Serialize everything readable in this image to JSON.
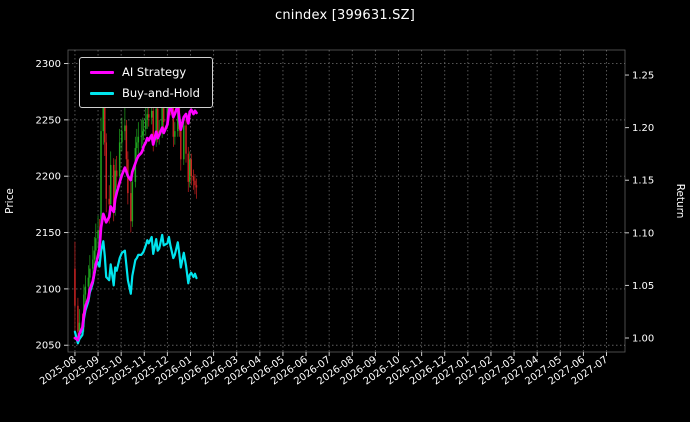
{
  "chart_data": {
    "type": "candlestick+line",
    "title": "cnindex [399631.SZ]",
    "ylabel_left": "Price",
    "ylabel_right": "Return",
    "grid": true,
    "legend_position": "upper left",
    "x_tick_labels": [
      "2025-08",
      "2025-09",
      "2025-10",
      "2025-11",
      "2025-12",
      "2026-01",
      "2026-02",
      "2026-03",
      "2026-04",
      "2026-05",
      "2026-06",
      "2026-07",
      "2026-08",
      "2026-09",
      "2026-10",
      "2026-11",
      "2026-12",
      "2027-01",
      "2027-02",
      "2027-03",
      "2027-04",
      "2027-05",
      "2027-06",
      "2027-07"
    ],
    "y_left_ticks": [
      2050,
      2100,
      2150,
      2200,
      2250,
      2300
    ],
    "y_right_ticks": [
      1.0,
      1.05,
      1.1,
      1.15,
      1.2,
      1.25
    ],
    "y_left_range": [
      2044,
      2312
    ],
    "y_right_range": [
      0.9867,
      1.2738
    ],
    "colors": {
      "background": "#000000",
      "text": "#ffffff",
      "grid": "#606060",
      "spine": "#aaaaaa",
      "up": "#1fa51f",
      "down": "#cc2222",
      "ai_strategy": "#ff00ff",
      "buy_and_hold": "#00e5ee"
    },
    "candles": [
      [
        "2025-08-01",
        2118,
        2142,
        2060,
        2085
      ],
      [
        "2025-08-05",
        2085,
        2092,
        2052,
        2062
      ],
      [
        "2025-08-07",
        2062,
        2082,
        2056,
        2070
      ],
      [
        "2025-08-11",
        2070,
        2078,
        2058,
        2066
      ],
      [
        "2025-08-13",
        2066,
        2104,
        2062,
        2095
      ],
      [
        "2025-08-15",
        2095,
        2112,
        2088,
        2102
      ],
      [
        "2025-08-19",
        2102,
        2121,
        2094,
        2110
      ],
      [
        "2025-08-21",
        2110,
        2130,
        2102,
        2118
      ],
      [
        "2025-08-25",
        2118,
        2138,
        2110,
        2126
      ],
      [
        "2025-08-27",
        2126,
        2146,
        2118,
        2134
      ],
      [
        "2025-08-29",
        2134,
        2158,
        2126,
        2145
      ],
      [
        "2025-09-01",
        2145,
        2165,
        2136,
        2152
      ],
      [
        "2025-09-03",
        2152,
        2162,
        2140,
        2150
      ],
      [
        "2025-09-05",
        2150,
        2252,
        2145,
        2240
      ],
      [
        "2025-09-08",
        2240,
        2295,
        2228,
        2285
      ],
      [
        "2025-09-10",
        2285,
        2292,
        2218,
        2230
      ],
      [
        "2025-09-12",
        2230,
        2238,
        2168,
        2180
      ],
      [
        "2025-09-16",
        2180,
        2192,
        2158,
        2175
      ],
      [
        "2025-09-18",
        2175,
        2222,
        2170,
        2210
      ],
      [
        "2025-09-22",
        2210,
        2216,
        2160,
        2170
      ],
      [
        "2025-09-24",
        2170,
        2215,
        2165,
        2205
      ],
      [
        "2025-09-26",
        2205,
        2218,
        2190,
        2200
      ],
      [
        "2025-09-30",
        2200,
        2242,
        2195,
        2230
      ],
      [
        "2025-10-02",
        2230,
        2252,
        2222,
        2240
      ],
      [
        "2025-10-06",
        2240,
        2262,
        2232,
        2245
      ],
      [
        "2025-10-08",
        2245,
        2250,
        2205,
        2215
      ],
      [
        "2025-10-10",
        2215,
        2222,
        2175,
        2185
      ],
      [
        "2025-10-14",
        2185,
        2195,
        2150,
        2160
      ],
      [
        "2025-10-16",
        2160,
        2205,
        2155,
        2195
      ],
      [
        "2025-10-20",
        2195,
        2235,
        2190,
        2225
      ],
      [
        "2025-10-22",
        2225,
        2242,
        2215,
        2230
      ],
      [
        "2025-10-24",
        2230,
        2248,
        2220,
        2235
      ],
      [
        "2025-10-28",
        2235,
        2250,
        2225,
        2236
      ],
      [
        "2025-10-30",
        2236,
        2252,
        2228,
        2240
      ],
      [
        "2025-10-31",
        2240,
        2250,
        2232,
        2242
      ],
      [
        "2025-11-03",
        2242,
        2262,
        2236,
        2250
      ],
      [
        "2025-11-05",
        2250,
        2268,
        2242,
        2255
      ],
      [
        "2025-11-07",
        2255,
        2264,
        2244,
        2252
      ],
      [
        "2025-11-11",
        2252,
        2270,
        2246,
        2258
      ],
      [
        "2025-11-13",
        2258,
        2262,
        2222,
        2232
      ],
      [
        "2025-11-17",
        2232,
        2268,
        2226,
        2260
      ],
      [
        "2025-11-19",
        2260,
        2265,
        2230,
        2238
      ],
      [
        "2025-11-21",
        2238,
        2250,
        2228,
        2240
      ],
      [
        "2025-11-25",
        2240,
        2275,
        2234,
        2266
      ],
      [
        "2025-11-27",
        2266,
        2272,
        2240,
        2248
      ],
      [
        "2025-12-01",
        2248,
        2280,
        2242,
        2272
      ],
      [
        "2025-12-03",
        2272,
        2296,
        2264,
        2290
      ],
      [
        "2025-12-05",
        2290,
        2294,
        2254,
        2262
      ],
      [
        "2025-12-09",
        2262,
        2268,
        2226,
        2235
      ],
      [
        "2025-12-11",
        2235,
        2248,
        2228,
        2240
      ],
      [
        "2025-12-15",
        2240,
        2276,
        2235,
        2268
      ],
      [
        "2025-12-17",
        2268,
        2274,
        2235,
        2242
      ],
      [
        "2025-12-19",
        2242,
        2248,
        2205,
        2215
      ],
      [
        "2025-12-23",
        2215,
        2252,
        2210,
        2245
      ],
      [
        "2025-12-26",
        2245,
        2250,
        2212,
        2220
      ],
      [
        "2025-12-29",
        2220,
        2226,
        2186,
        2195
      ],
      [
        "2025-12-31",
        2195,
        2222,
        2190,
        2215
      ],
      [
        "2026-01-02",
        2215,
        2220,
        2192,
        2200
      ],
      [
        "2026-01-05",
        2200,
        2206,
        2188,
        2196
      ],
      [
        "2026-01-07",
        2196,
        2202,
        2184,
        2192
      ],
      [
        "2026-01-09",
        2192,
        2198,
        2180,
        2190
      ]
    ],
    "series": [
      {
        "name": "AI Strategy",
        "color": "#ff00ff",
        "axis": "right",
        "values": [
          1.0,
          0.998,
          1.004,
          1.01,
          1.022,
          1.03,
          1.038,
          1.046,
          1.054,
          1.062,
          1.07,
          1.078,
          1.085,
          1.105,
          1.118,
          1.114,
          1.11,
          1.115,
          1.125,
          1.12,
          1.132,
          1.138,
          1.148,
          1.155,
          1.162,
          1.158,
          1.154,
          1.15,
          1.158,
          1.166,
          1.17,
          1.173,
          1.176,
          1.179,
          1.182,
          1.186,
          1.19,
          1.188,
          1.193,
          1.184,
          1.196,
          1.19,
          1.193,
          1.2,
          1.195,
          1.203,
          1.215,
          1.222,
          1.21,
          1.213,
          1.221,
          1.209,
          1.198,
          1.21,
          1.213,
          1.204,
          1.215,
          1.217,
          1.213,
          1.216,
          1.214
        ]
      },
      {
        "name": "Buy-and-Hold",
        "color": "#00e5ee",
        "axis": "right",
        "values": [
          1.006,
          0.995,
          0.999,
          1.003,
          1.018,
          1.026,
          1.035,
          1.043,
          1.052,
          1.06,
          1.068,
          1.072,
          1.068,
          1.082,
          1.092,
          1.078,
          1.058,
          1.055,
          1.07,
          1.05,
          1.067,
          1.064,
          1.076,
          1.081,
          1.083,
          1.069,
          1.055,
          1.042,
          1.059,
          1.074,
          1.076,
          1.079,
          1.079,
          1.081,
          1.082,
          1.088,
          1.093,
          1.09,
          1.096,
          1.08,
          1.094,
          1.083,
          1.085,
          1.098,
          1.088,
          1.09,
          1.096,
          1.088,
          1.076,
          1.079,
          1.091,
          1.08,
          1.067,
          1.081,
          1.069,
          1.052,
          1.06,
          1.062,
          1.058,
          1.061,
          1.057
        ]
      }
    ]
  }
}
